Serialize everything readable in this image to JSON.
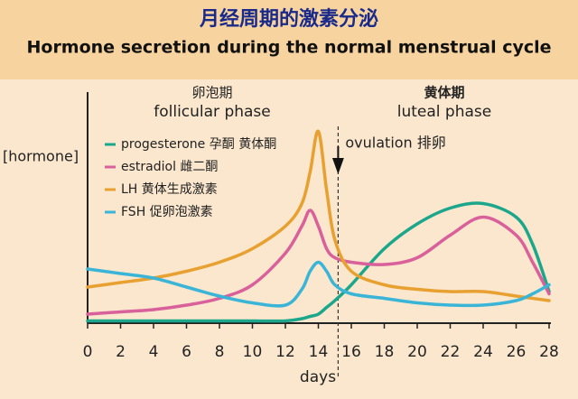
{
  "chart_data": {
    "type": "line",
    "title": "月经周期的激素分泌",
    "subtitle": "Hormone secretion during the normal menstrual cycle",
    "x_label": "days",
    "y_label": "[hormone]",
    "annotations": {
      "follicular_cn": "卵泡期",
      "follicular": "follicular phase",
      "luteal_cn": "黄体期",
      "luteal": "luteal phase",
      "ovulation": "ovulation 排卵"
    },
    "x": [
      0,
      2,
      4,
      6,
      8,
      10,
      12,
      13,
      13.5,
      14,
      14.5,
      15,
      16,
      18,
      20,
      22,
      24,
      26,
      27,
      28
    ],
    "xlim": [
      0,
      28
    ],
    "xticks": [
      0,
      2,
      4,
      6,
      8,
      10,
      12,
      14,
      16,
      18,
      20,
      22,
      24,
      26,
      28
    ],
    "ylim": [
      0,
      100
    ],
    "ovulation_day": 15.2,
    "series": [
      {
        "name": "progesterone 孕酮 黄体酮",
        "color": "#1ca78c",
        "values": [
          1,
          1,
          1,
          1,
          1,
          1,
          1,
          2,
          3,
          4,
          7,
          10,
          17,
          33,
          44,
          51,
          53,
          47,
          35,
          14
        ]
      },
      {
        "name": "estradiol 雌二酮",
        "color": "#d9609a",
        "values": [
          4,
          5,
          6,
          8,
          11,
          17,
          31,
          43,
          50,
          43,
          33,
          29,
          27,
          26,
          29,
          39,
          47,
          39,
          27,
          13
        ]
      },
      {
        "name": "LH 黄体生成激素",
        "color": "#e8a030",
        "values": [
          16,
          18,
          20,
          23,
          27,
          33,
          43,
          53,
          67,
          85,
          59,
          37,
          23,
          17,
          15,
          14,
          14,
          12,
          11,
          10
        ]
      },
      {
        "name": "FSH 促卵泡激素",
        "color": "#3ab5d8",
        "values": [
          24,
          22,
          20,
          16,
          12,
          9,
          8,
          15,
          23,
          27,
          23,
          17,
          13,
          11,
          9,
          8,
          8,
          10,
          13,
          17
        ]
      }
    ]
  }
}
